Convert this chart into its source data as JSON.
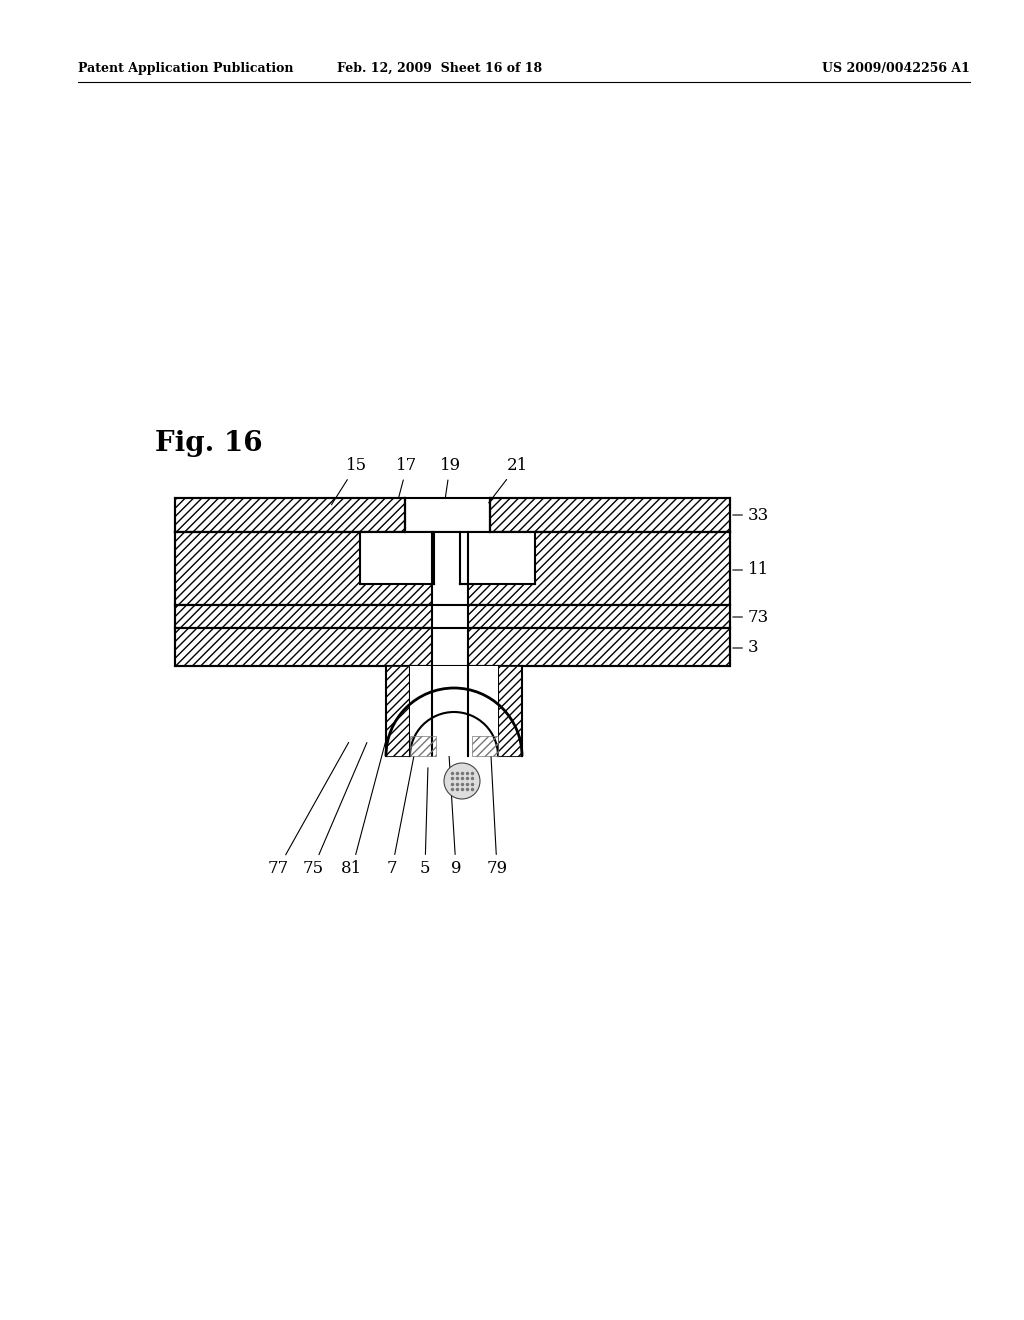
{
  "title": "Fig. 16",
  "header_left": "Patent Application Publication",
  "header_mid": "Feb. 12, 2009  Sheet 16 of 18",
  "header_right": "US 2009/0042256 A1",
  "bg_color": "#ffffff",
  "line_color": "#000000"
}
